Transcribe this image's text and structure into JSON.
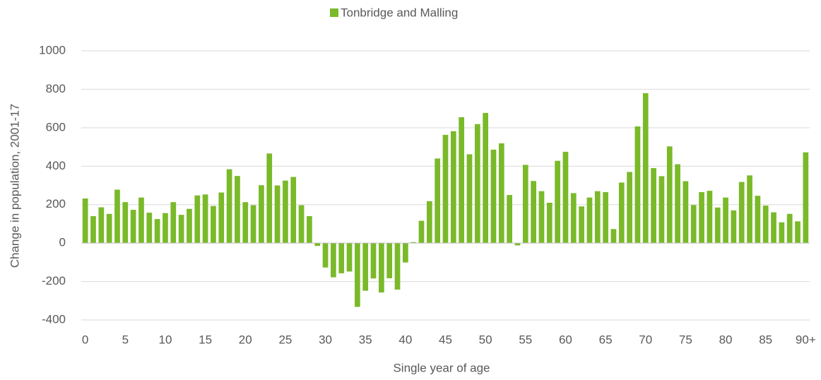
{
  "chart_data": {
    "type": "bar",
    "xlabel": "Single year of age",
    "ylabel": "Change in population, 2001-17",
    "categories": [
      "0",
      null,
      null,
      null,
      null,
      "5",
      null,
      null,
      null,
      null,
      "10",
      null,
      null,
      null,
      null,
      "15",
      null,
      null,
      null,
      null,
      "20",
      null,
      null,
      null,
      null,
      "25",
      null,
      null,
      null,
      null,
      "30",
      null,
      null,
      null,
      null,
      "35",
      null,
      null,
      null,
      null,
      "40",
      null,
      null,
      null,
      null,
      "45",
      null,
      null,
      null,
      null,
      "50",
      null,
      null,
      null,
      null,
      "55",
      null,
      null,
      null,
      null,
      "60",
      null,
      null,
      null,
      null,
      "65",
      null,
      null,
      null,
      null,
      "70",
      null,
      null,
      null,
      null,
      "75",
      null,
      null,
      null,
      null,
      "80",
      null,
      null,
      null,
      null,
      "85",
      null,
      null,
      null,
      null,
      "90+"
    ],
    "series": [
      {
        "name": "Tonbridge and Malling",
        "color": "#7ab929",
        "values": [
          232,
          140,
          186,
          152,
          278,
          213,
          173,
          237,
          158,
          125,
          156,
          213,
          147,
          178,
          248,
          253,
          193,
          263,
          384,
          349,
          213,
          197,
          301,
          466,
          300,
          325,
          344,
          197,
          140,
          -15,
          -127,
          -178,
          -157,
          -148,
          -332,
          -248,
          -184,
          -257,
          -183,
          -242,
          -101,
          5,
          116,
          218,
          440,
          563,
          582,
          655,
          462,
          619,
          677,
          486,
          519,
          250,
          -12,
          407,
          323,
          270,
          210,
          428,
          475,
          260,
          191,
          237,
          270,
          265,
          73,
          315,
          370,
          607,
          780,
          390,
          348,
          503,
          410,
          322,
          198,
          265,
          272,
          185,
          237,
          170,
          318,
          352,
          246,
          195,
          160,
          108,
          152,
          113,
          472
        ]
      }
    ],
    "ylim": [
      -400,
      1000
    ],
    "yticks": [
      -400,
      -200,
      0,
      200,
      400,
      600,
      800,
      1000
    ],
    "grid": true,
    "legend": "top"
  }
}
